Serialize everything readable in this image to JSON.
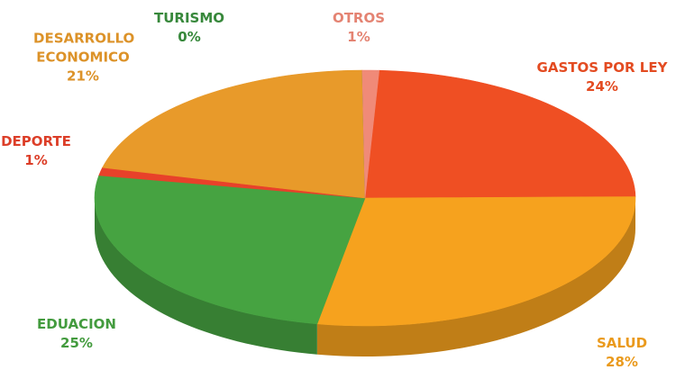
{
  "chart_data": {
    "type": "pie",
    "categories": [
      "GASTOS POR LEY",
      "SALUD",
      "EDUACION",
      "DEPORTE",
      "DESARROLLO ECONOMICO",
      "TURISMO",
      "OTROS"
    ],
    "values": [
      24,
      28,
      25,
      1,
      21,
      0,
      1
    ],
    "value_labels": [
      "24%",
      "28%",
      "25%",
      "1%",
      "21%",
      "0%",
      "1%"
    ],
    "colors": [
      "#ef4f23",
      "#f6a21e",
      "#46a341",
      "#e8412a",
      "#e89a2a",
      "#3a8f3e",
      "#f08a78"
    ]
  }
}
